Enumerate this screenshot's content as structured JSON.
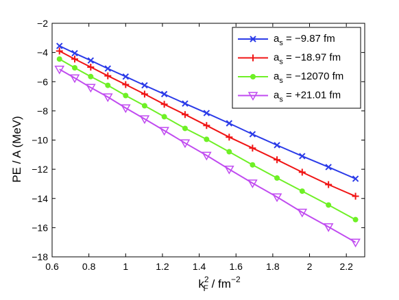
{
  "chart_data": {
    "type": "line",
    "title": "",
    "xlabel": {
      "base": "k",
      "sub": "F",
      "sup": "2",
      "rest": " / fm",
      "rest_sup": "−2"
    },
    "ylabel": "PE / A (MeV)",
    "xlim": [
      0.6,
      2.3
    ],
    "ylim": [
      -18,
      -2
    ],
    "xticks": [
      0.6,
      0.8,
      1,
      1.2,
      1.4,
      1.6,
      1.8,
      2,
      2.2
    ],
    "xtick_labels": [
      "0.6",
      "0.8",
      "1",
      "1.2",
      "1.4",
      "1.6",
      "1.8",
      "2",
      "2.2"
    ],
    "yticks": [
      -18,
      -16,
      -14,
      -12,
      -10,
      -8,
      -6,
      -4,
      -2
    ],
    "ytick_labels": [
      "−18",
      "−16",
      "−14",
      "−12",
      "−10",
      "−8",
      "−6",
      "−4",
      "−2"
    ],
    "grid": false,
    "legend_position": "top-right",
    "x": [
      0.64,
      0.723,
      0.81,
      0.903,
      1.0,
      1.103,
      1.21,
      1.323,
      1.44,
      1.563,
      1.69,
      1.823,
      1.96,
      2.103,
      2.25
    ],
    "series": [
      {
        "label_base": "a",
        "label_sub": "s",
        "label_rest": " = −9.87 fm",
        "color": "#2b3be8",
        "marker": "x",
        "values": [
          -3.55,
          -4.05,
          -4.55,
          -5.1,
          -5.65,
          -6.25,
          -6.85,
          -7.5,
          -8.15,
          -8.85,
          -9.6,
          -10.35,
          -11.1,
          -11.85,
          -12.65
        ]
      },
      {
        "label_base": "a",
        "label_sub": "s",
        "label_rest": " = −18.97 fm",
        "color": "#f01414",
        "marker": "plus",
        "values": [
          -3.9,
          -4.45,
          -5.0,
          -5.6,
          -6.2,
          -6.85,
          -7.55,
          -8.25,
          -9.0,
          -9.8,
          -10.55,
          -11.35,
          -12.2,
          -13.05,
          -13.85
        ]
      },
      {
        "label_base": "a",
        "label_sub": "s",
        "label_rest": " = −12070 fm",
        "color": "#6ef025",
        "marker": "circle",
        "values": [
          -4.45,
          -5.05,
          -5.65,
          -6.25,
          -6.95,
          -7.65,
          -8.4,
          -9.2,
          -9.95,
          -10.8,
          -11.7,
          -12.6,
          -13.5,
          -14.45,
          -15.45
        ]
      },
      {
        "label_base": "a",
        "label_sub": "s",
        "label_rest": " = +21.01 fm",
        "color": "#c04af0",
        "marker": "triangle-down",
        "values": [
          -5.15,
          -5.75,
          -6.4,
          -7.05,
          -7.8,
          -8.55,
          -9.35,
          -10.2,
          -11.05,
          -12.0,
          -12.95,
          -13.9,
          -14.95,
          -15.95,
          -17.0
        ]
      }
    ]
  }
}
